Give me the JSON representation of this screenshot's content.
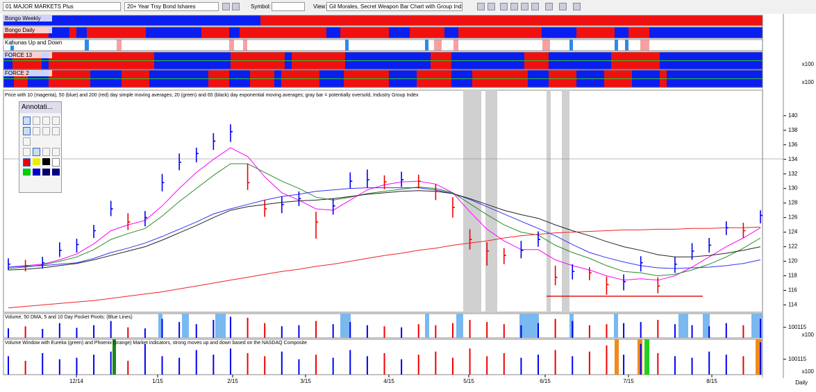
{
  "toolbar": {
    "watchlist": "01 MAJOR MARKETS Plus",
    "symbol_name": "20+ Year Trsy Bond Ishares",
    "symbol_label": "Symbol:",
    "view_label": "View:",
    "view": "Gil Morales, Secret Weapon Bar Chart with Group Index"
  },
  "indicator_panes": [
    {
      "title": "Bongo Weekly"
    },
    {
      "title": "Bongo Daily"
    },
    {
      "title": "Kahunas Up and Down"
    },
    {
      "title": "FORCE 13",
      "unit_label": "x100"
    },
    {
      "title": "FORCE 2",
      "unit_label": "x100"
    }
  ],
  "annotation_palette": {
    "title": "Annotati..."
  },
  "chart_data": {
    "type": "ohlc",
    "title": "Price with 10 (magenta), 50 (blue) and 200 (red) day simple moving averages; 20 (green) and 65 (black) day exponential moving averages; gray bar = potentially oversold, Industry Group Index",
    "up_color": "#0000ee",
    "down_color": "#ee0000",
    "high": [
      120.4,
      120.2,
      120.6,
      122.6,
      123.1,
      125.0,
      128.3,
      126.6,
      126.9,
      132.0,
      134.8,
      135.6,
      137.6,
      138.8,
      133.4,
      128.4,
      128.9,
      129.6,
      126.8,
      128.6,
      132.2,
      132.6,
      131.8,
      132.3,
      131.9,
      130.6,
      128.8,
      124.4,
      122.6,
      121.8,
      122.8,
      124.1,
      119.4,
      119.6,
      119.2,
      117.9,
      118.2,
      120.7,
      117.8,
      120.6,
      122.5,
      123.2,
      125.5,
      125.3,
      127.0
    ],
    "low": [
      118.8,
      118.6,
      119.0,
      120.6,
      121.2,
      123.2,
      126.2,
      124.3,
      124.8,
      129.6,
      132.5,
      133.6,
      135.3,
      136.4,
      129.8,
      126.1,
      126.6,
      127.6,
      123.1,
      126.4,
      130.0,
      130.1,
      129.9,
      130.2,
      130.0,
      128.4,
      126.0,
      121.6,
      119.4,
      119.6,
      120.4,
      122.0,
      116.7,
      117.5,
      117.4,
      115.4,
      116.0,
      118.6,
      115.6,
      118.4,
      120.2,
      121.2,
      123.6,
      123.2,
      125.2
    ],
    "close": [
      119.6,
      119.4,
      119.8,
      121.5,
      122.3,
      124.2,
      127.2,
      125.4,
      126.0,
      130.8,
      133.6,
      134.8,
      136.5,
      137.8,
      130.8,
      127.2,
      127.8,
      128.6,
      125.4,
      127.6,
      131.0,
      131.2,
      130.9,
      131.2,
      131.0,
      129.6,
      127.4,
      123.0,
      121.4,
      120.8,
      121.5,
      123.0,
      117.8,
      118.6,
      118.4,
      116.8,
      117.2,
      119.8,
      116.6,
      119.6,
      121.4,
      122.2,
      124.6,
      124.2,
      126.3
    ],
    "series": [
      {
        "color": "#ff00ff",
        "values": [
          119.2,
          119.4,
          119.6,
          120.2,
          121.0,
          122.4,
          124.2,
          125.0,
          125.6,
          127.6,
          130.0,
          132.2,
          134.0,
          135.6,
          134.4,
          131.6,
          129.4,
          128.4,
          127.2,
          127.0,
          128.4,
          129.8,
          130.5,
          130.9,
          131.0,
          130.6,
          129.4,
          126.8,
          124.4,
          122.8,
          121.6,
          121.6,
          120.2,
          119.4,
          118.8,
          118.0,
          117.4,
          117.6,
          117.4,
          118.0,
          119.2,
          120.6,
          122.0,
          123.2,
          124.6
        ]
      },
      {
        "color": "#2a8a2a",
        "values": [
          119.0,
          119.2,
          119.5,
          120.0,
          120.6,
          121.6,
          123.0,
          123.8,
          124.5,
          126.2,
          128.2,
          130.0,
          131.8,
          133.4,
          133.4,
          132.2,
          131.0,
          130.0,
          128.8,
          128.4,
          128.8,
          129.3,
          129.6,
          129.9,
          130.2,
          130.0,
          129.4,
          127.9,
          126.4,
          125.0,
          124.0,
          123.6,
          122.2,
          121.2,
          120.4,
          119.4,
          118.6,
          118.4,
          118.0,
          118.2,
          118.8,
          119.6,
          120.6,
          121.8,
          123.2
        ]
      },
      {
        "color": "#3333ee",
        "values": [
          119.2,
          119.3,
          119.4,
          119.6,
          119.8,
          120.4,
          121.2,
          121.8,
          122.5,
          123.4,
          124.4,
          125.4,
          126.5,
          127.2,
          127.8,
          128.4,
          128.9,
          129.2,
          129.6,
          129.8,
          130.0,
          130.1,
          130.1,
          130.1,
          130.1,
          129.8,
          129.3,
          128.5,
          127.5,
          126.5,
          125.5,
          124.5,
          123.5,
          122.3,
          121.2,
          120.5,
          119.9,
          119.4,
          119.1,
          119.0,
          119.1,
          119.2,
          119.4,
          119.7,
          120.2
        ]
      },
      {
        "color": "#222222",
        "values": [
          118.8,
          118.9,
          119.1,
          119.4,
          119.7,
          120.2,
          120.8,
          121.4,
          122.0,
          122.9,
          123.9,
          124.9,
          126.0,
          127.0,
          127.5,
          127.8,
          128.1,
          128.3,
          128.4,
          128.6,
          128.9,
          129.2,
          129.4,
          129.6,
          129.7,
          129.6,
          129.3,
          128.6,
          127.8,
          127.0,
          126.4,
          125.9,
          125.0,
          124.2,
          123.5,
          122.7,
          122.0,
          121.5,
          120.9,
          120.6,
          120.6,
          120.8,
          121.1,
          121.5,
          122.0
        ]
      },
      {
        "color": "#ee2222",
        "values": [
          113.6,
          113.8,
          114.0,
          114.2,
          114.4,
          114.6,
          114.9,
          115.2,
          115.5,
          115.8,
          116.2,
          116.6,
          117.0,
          117.4,
          117.8,
          118.2,
          118.6,
          118.9,
          119.3,
          119.6,
          120.0,
          120.4,
          120.8,
          121.1,
          121.5,
          121.8,
          122.2,
          122.5,
          122.8,
          123.2,
          123.5,
          123.7,
          123.9,
          124.0,
          124.1,
          124.2,
          124.3,
          124.3,
          124.4,
          124.4,
          124.5,
          124.5,
          124.6,
          124.6,
          124.7
        ]
      }
    ],
    "hline": {
      "value": 115.2,
      "color": "#dd0000"
    },
    "ylim": [
      113,
      143.5
    ],
    "yticks": [
      114,
      116,
      118,
      120,
      122,
      124,
      126,
      128,
      130,
      132,
      134,
      136,
      138,
      140
    ],
    "date_labels": [
      "12/14",
      "1/15",
      "2/15",
      "3/15",
      "4/15",
      "5/15",
      "6/15",
      "7/15",
      "8/15"
    ],
    "period": "Daily"
  },
  "volume_pane": {
    "title": "Volume, 50 DMA, 5 and 10 Day Pocket Pivots: (Blue Lines)",
    "unit_label": "x100",
    "ylim": [
      0,
      230000
    ],
    "yticks": [
      100115
    ],
    "values": [
      90000,
      110000,
      85000,
      140000,
      95000,
      120000,
      160000,
      100000,
      90000,
      180000,
      150000,
      130000,
      170000,
      200000,
      190000,
      140000,
      110000,
      120000,
      160000,
      130000,
      150000,
      120000,
      110000,
      100000,
      130000,
      120000,
      140000,
      170000,
      150000,
      130000,
      120000,
      140000,
      180000,
      160000,
      120000,
      130000,
      140000,
      150000,
      170000,
      130000,
      120000,
      110000,
      140000,
      120000,
      180000
    ]
  },
  "volume_window": {
    "title": "Volume Window with Eureka (green) and Phoenix (orange) Market indicators, strong moves up and down based on the NASDAQ Composite",
    "unit_label": "x100",
    "ylim": [
      0,
      230000
    ],
    "yticks": [
      100115
    ],
    "values": [
      120000,
      90000,
      140000,
      100000,
      110000,
      130000,
      150000,
      90000,
      200000,
      120000,
      110000,
      160000,
      130000,
      170000,
      140000,
      120000,
      150000,
      100000,
      130000,
      110000,
      160000,
      120000,
      140000,
      100000,
      130000,
      150000,
      110000,
      170000,
      120000,
      140000,
      110000,
      130000,
      160000,
      120000,
      150000,
      190000,
      130000,
      200000,
      140000,
      120000,
      110000,
      150000,
      130000,
      120000,
      210000
    ]
  }
}
